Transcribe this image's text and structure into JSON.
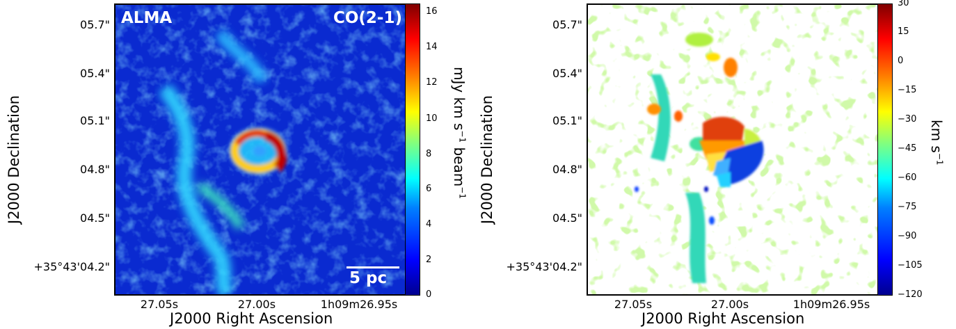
{
  "left_panel": {
    "telescope_label": "ALMA",
    "line_label": "CO(2-1)",
    "scalebar_label": "5 pc",
    "x_axis_label": "J2000 Right Ascension",
    "y_axis_label": "J2000 Declination",
    "x_ticks": [
      "27.05s",
      "27.00s",
      "1h09m26.95s"
    ],
    "y_ticks": [
      "05.7\"",
      "05.4\"",
      "05.1\"",
      "04.8\"",
      "04.5\"",
      "+35°43'04.2\""
    ],
    "colorbar": {
      "ticks": [
        "16",
        "14",
        "12",
        "10",
        "8",
        "6",
        "4",
        "2",
        "0"
      ],
      "label_main": "mJy km s",
      "label_sup1": "−1",
      "label_mid": " beam",
      "label_sup2": "−1",
      "colormap": "jet",
      "range": [
        0,
        16.3
      ]
    }
  },
  "right_panel": {
    "x_axis_label": "J2000 Right Ascension",
    "y_axis_label": "J2000 Declination",
    "x_ticks": [
      "27.05s",
      "27.00s",
      "1h09m26.95s"
    ],
    "y_ticks": [
      "05.7\"",
      "05.4\"",
      "05.1\"",
      "04.8\"",
      "04.5\"",
      "+35°43'04.2\""
    ],
    "colorbar": {
      "ticks": [
        "30",
        "15",
        "0",
        "−15",
        "−30",
        "−45",
        "−60",
        "−75",
        "−90",
        "−105",
        "−120"
      ],
      "label_main": "km s",
      "label_sup": "−1",
      "colormap": "jet",
      "range": [
        -120,
        30
      ]
    }
  }
}
